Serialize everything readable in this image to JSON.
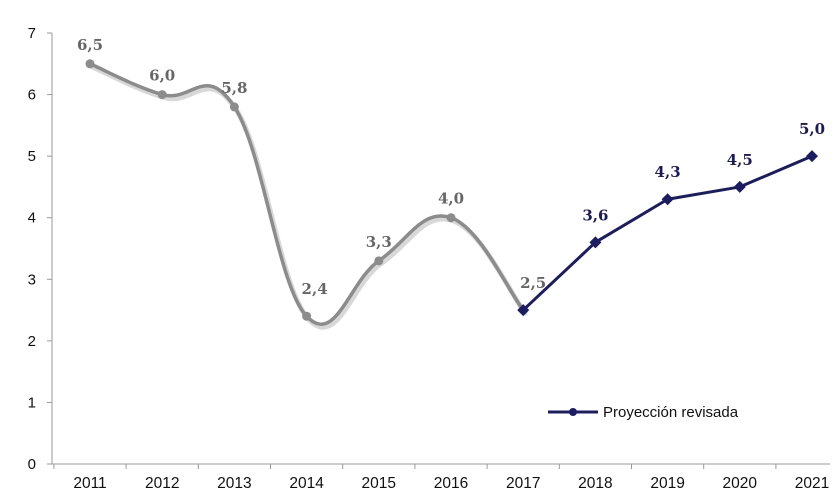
{
  "chart_data": {
    "type": "line",
    "title": "",
    "xlabel": "",
    "ylabel": "",
    "categories": [
      "2011",
      "2012",
      "2013",
      "2014",
      "2015",
      "2016",
      "2017",
      "2018",
      "2019",
      "2020",
      "2021"
    ],
    "ylim": [
      0,
      7
    ],
    "yticks": [
      0,
      1,
      2,
      3,
      4,
      5,
      6,
      7
    ],
    "grid": false,
    "legend_position": "bottom-right",
    "series": [
      {
        "values": [
          6.5,
          6.0,
          5.8,
          2.4,
          3.3,
          4.0,
          2.5,
          null,
          null,
          null,
          null
        ],
        "labels": [
          "6,5",
          "6,0",
          "5,8",
          "2,4",
          "3,3",
          "4,0",
          "2,5",
          null,
          null,
          null,
          null
        ],
        "color": "#8c8c8c",
        "style": "smooth"
      },
      {
        "name": "Proyección revisada",
        "values": [
          null,
          null,
          null,
          null,
          null,
          null,
          2.5,
          3.6,
          4.3,
          4.5,
          5.0
        ],
        "labels": [
          null,
          null,
          null,
          null,
          null,
          null,
          null,
          "3,6",
          "4,3",
          "4,5",
          "5,0"
        ],
        "color": "#1c1c64",
        "style": "straight-with-markers"
      }
    ]
  }
}
